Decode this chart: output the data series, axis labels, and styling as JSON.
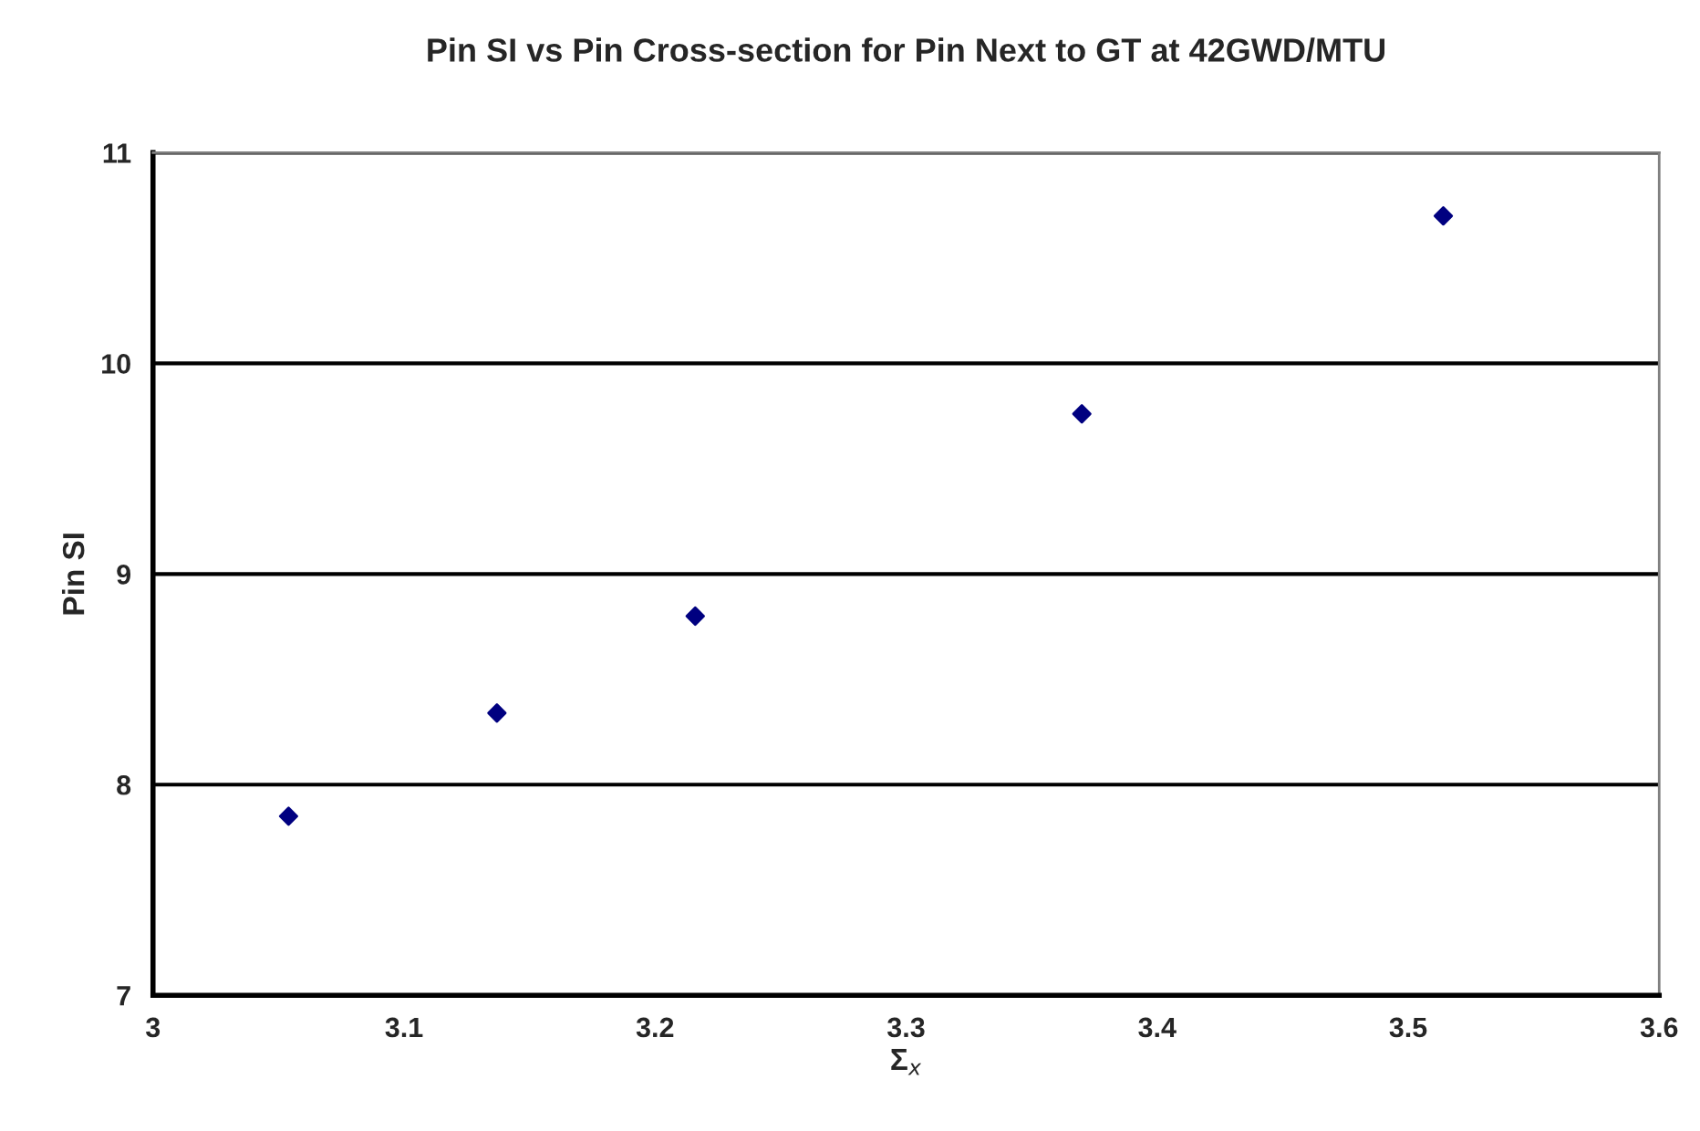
{
  "chart_data": {
    "type": "scatter",
    "title": "Pin SI vs Pin Cross-section for Pin Next to GT at 42GWD/MTU",
    "xlabel": "Σ$_{x}$",
    "ylabel": "Pin SI",
    "x": [
      3.054,
      3.137,
      3.216,
      3.37,
      3.514
    ],
    "series": [
      {
        "color": "#000080",
        "values": [
          7.85,
          8.34,
          8.8,
          9.76,
          10.7
        ]
      }
    ],
    "xlim": [
      3,
      3.6
    ],
    "xticks": [
      3,
      3.1,
      3.2,
      3.3,
      3.4,
      3.5,
      3.6
    ],
    "ylim": [
      7,
      11
    ],
    "yticks": [
      7,
      8,
      9,
      10,
      11
    ],
    "grid": "y",
    "marker": "diamond",
    "legend": false
  }
}
